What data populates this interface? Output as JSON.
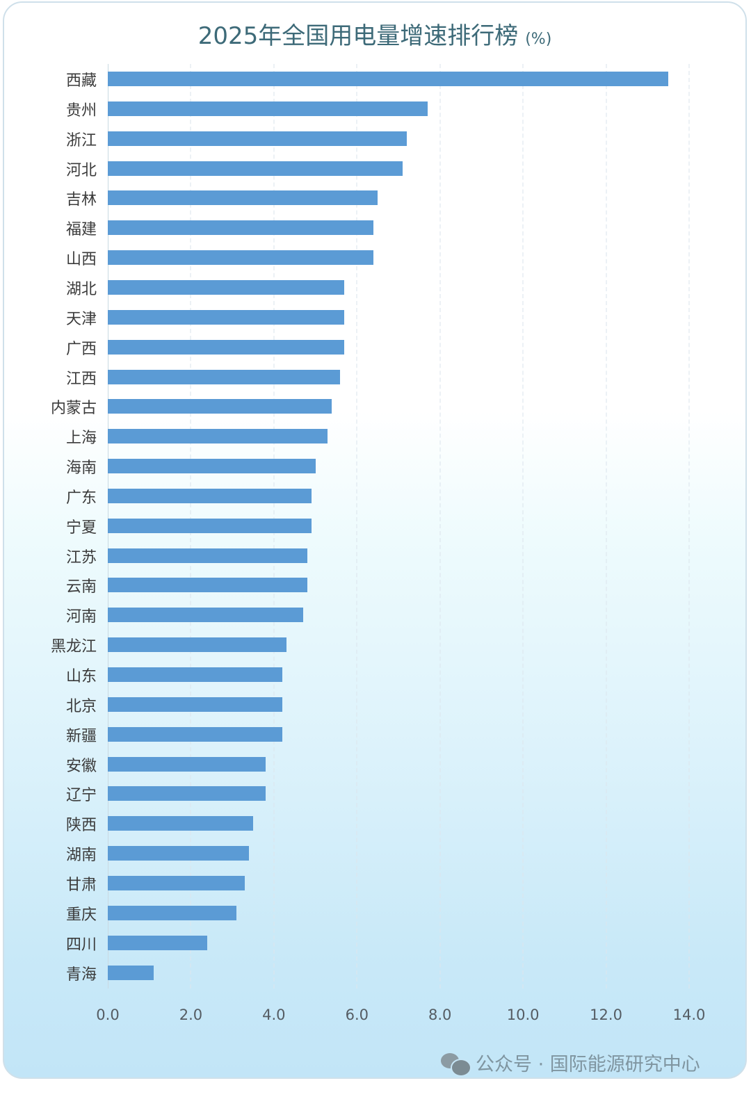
{
  "title": "2025年全国用电量增速排行榜",
  "title_unit": "(%)",
  "footer": {
    "icon": "wechat-icon",
    "text": "公众号 · 国际能源研究中心"
  },
  "colors": {
    "bar": "#5b9bd5",
    "title": "#3d6a78",
    "label": "#3b3b3b"
  },
  "x_ticks": [
    "0.0",
    "2.0",
    "4.0",
    "6.0",
    "8.0",
    "10.0",
    "12.0",
    "14.0"
  ],
  "chart_data": {
    "type": "bar",
    "orientation": "horizontal",
    "title": "2025年全国用电量增速排行榜 (%)",
    "xlabel": "",
    "ylabel": "",
    "xlim": [
      0,
      14
    ],
    "grid": true,
    "legend": null,
    "categories": [
      "西藏",
      "贵州",
      "浙江",
      "河北",
      "吉林",
      "福建",
      "山西",
      "湖北",
      "天津",
      "广西",
      "江西",
      "内蒙古",
      "上海",
      "海南",
      "广东",
      "宁夏",
      "江苏",
      "云南",
      "河南",
      "黑龙江",
      "山东",
      "北京",
      "新疆",
      "安徽",
      "辽宁",
      "陕西",
      "湖南",
      "甘肃",
      "重庆",
      "四川",
      "青海"
    ],
    "values": [
      13.5,
      7.7,
      7.2,
      7.1,
      6.5,
      6.4,
      6.4,
      5.7,
      5.7,
      5.7,
      5.6,
      5.4,
      5.3,
      5.0,
      4.9,
      4.9,
      4.8,
      4.8,
      4.7,
      4.3,
      4.2,
      4.2,
      4.2,
      3.8,
      3.8,
      3.5,
      3.4,
      3.3,
      3.1,
      2.4,
      1.1
    ]
  }
}
